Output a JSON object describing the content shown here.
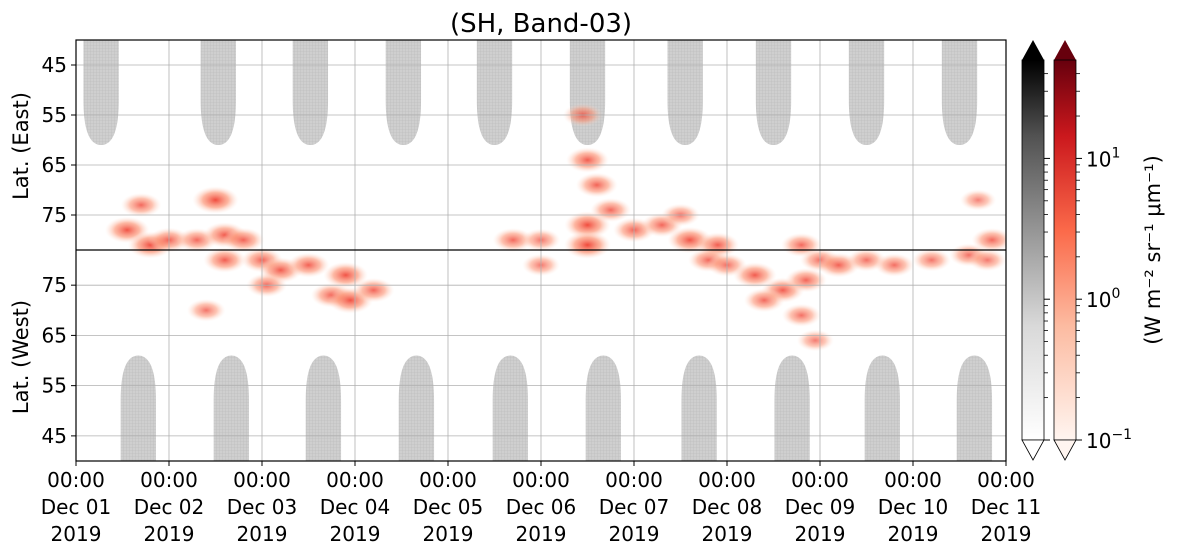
{
  "chart_data": {
    "type": "heatmap",
    "title": "(SH, Band-03)",
    "panels": [
      {
        "name": "east",
        "ylabel": "Lat. (East)",
        "y_ticks": [
          "45",
          "55",
          "65",
          "75"
        ],
        "y_range": [
          40,
          82
        ],
        "direction": "poleward-down"
      },
      {
        "name": "west",
        "ylabel": "Lat. (West)",
        "y_ticks": [
          "75",
          "65",
          "55",
          "45"
        ],
        "y_range": [
          82,
          40
        ],
        "direction": "poleward-up"
      }
    ],
    "x_ticks": [
      {
        "time": "00:00",
        "date": "Dec 01",
        "year": "2019"
      },
      {
        "time": "00:00",
        "date": "Dec 02",
        "year": "2019"
      },
      {
        "time": "00:00",
        "date": "Dec 03",
        "year": "2019"
      },
      {
        "time": "00:00",
        "date": "Dec 04",
        "year": "2019"
      },
      {
        "time": "00:00",
        "date": "Dec 05",
        "year": "2019"
      },
      {
        "time": "00:00",
        "date": "Dec 06",
        "year": "2019"
      },
      {
        "time": "00:00",
        "date": "Dec 07",
        "year": "2019"
      },
      {
        "time": "00:00",
        "date": "Dec 08",
        "year": "2019"
      },
      {
        "time": "00:00",
        "date": "Dec 09",
        "year": "2019"
      },
      {
        "time": "00:00",
        "date": "Dec 10",
        "year": "2019"
      },
      {
        "time": "00:00",
        "date": "Dec 11",
        "year": "2019"
      }
    ],
    "x_range_days": [
      0,
      10
    ],
    "grid": true,
    "colorbars": [
      {
        "name": "gray",
        "colors": [
          "#ffffff",
          "#d9d9d9",
          "#969696",
          "#525252",
          "#000000"
        ],
        "extend": "both"
      },
      {
        "name": "reds",
        "colors": [
          "#fff5f0",
          "#fcbba1",
          "#fb6a4a",
          "#cb181d",
          "#67000d"
        ],
        "extend": "both"
      }
    ],
    "colorbar_ticks": [
      {
        "base": "10",
        "exp": "1",
        "value": 10
      },
      {
        "base": "10",
        "exp": "0",
        "value": 1
      },
      {
        "base": "10",
        "exp": "−1",
        "value": 0.1
      }
    ],
    "colorbar_range": [
      0.1,
      50
    ],
    "colorbar_scale": "log",
    "colorbar_label": "(W m⁻² sr⁻¹ μm⁻¹)",
    "no_data_color": "#cccccc",
    "no_data_day_centers_east": [
      0.27,
      1.53,
      2.52,
      3.52,
      4.5,
      5.5,
      6.55,
      7.5,
      8.5,
      9.5
    ],
    "no_data_day_centers_west": [
      0.67,
      1.67,
      2.66,
      3.66,
      4.67,
      5.67,
      6.7,
      7.7,
      8.67,
      9.66
    ],
    "emission_blobs": [
      {
        "day": 0.55,
        "lat": 78,
        "panel": "east",
        "value": 2.5
      },
      {
        "day": 0.7,
        "lat": 73,
        "panel": "east",
        "value": 1.2
      },
      {
        "day": 0.8,
        "lat": 81,
        "panel": "east",
        "value": 3.0
      },
      {
        "day": 1.0,
        "lat": 80,
        "panel": "east",
        "value": 1.5
      },
      {
        "day": 1.3,
        "lat": 80,
        "panel": "east",
        "value": 1.2
      },
      {
        "day": 1.5,
        "lat": 72,
        "panel": "east",
        "value": 3.5
      },
      {
        "day": 1.6,
        "lat": 79,
        "panel": "east",
        "value": 2.0
      },
      {
        "day": 1.8,
        "lat": 80,
        "panel": "east",
        "value": 1.5
      },
      {
        "day": 1.6,
        "lat": 80,
        "panel": "west",
        "value": 1.8
      },
      {
        "day": 2.0,
        "lat": 80,
        "panel": "west",
        "value": 1.5
      },
      {
        "day": 2.2,
        "lat": 78,
        "panel": "west",
        "value": 2.0
      },
      {
        "day": 2.5,
        "lat": 79,
        "panel": "west",
        "value": 1.6
      },
      {
        "day": 2.9,
        "lat": 77,
        "panel": "west",
        "value": 2.5
      },
      {
        "day": 2.05,
        "lat": 75,
        "panel": "west",
        "value": 1.2
      },
      {
        "day": 2.75,
        "lat": 73,
        "panel": "west",
        "value": 1.5
      },
      {
        "day": 2.95,
        "lat": 72,
        "panel": "west",
        "value": 2.8
      },
      {
        "day": 3.2,
        "lat": 74,
        "panel": "west",
        "value": 1.4
      },
      {
        "day": 1.4,
        "lat": 70,
        "panel": "west",
        "value": 0.8
      },
      {
        "day": 4.7,
        "lat": 80,
        "panel": "east",
        "value": 1.2
      },
      {
        "day": 5.0,
        "lat": 80,
        "panel": "east",
        "value": 0.8
      },
      {
        "day": 5.0,
        "lat": 79,
        "panel": "west",
        "value": 0.7
      },
      {
        "day": 5.45,
        "lat": 55,
        "panel": "east",
        "value": 1.0
      },
      {
        "day": 5.5,
        "lat": 64,
        "panel": "east",
        "value": 1.8
      },
      {
        "day": 5.6,
        "lat": 69,
        "panel": "east",
        "value": 1.5
      },
      {
        "day": 5.5,
        "lat": 77,
        "panel": "east",
        "value": 3.5
      },
      {
        "day": 5.5,
        "lat": 81,
        "panel": "east",
        "value": 4.0
      },
      {
        "day": 5.75,
        "lat": 74,
        "panel": "east",
        "value": 1.2
      },
      {
        "day": 6.0,
        "lat": 78,
        "panel": "east",
        "value": 1.5
      },
      {
        "day": 6.3,
        "lat": 77,
        "panel": "east",
        "value": 1.3
      },
      {
        "day": 6.6,
        "lat": 80,
        "panel": "east",
        "value": 2.5
      },
      {
        "day": 6.9,
        "lat": 81,
        "panel": "east",
        "value": 1.8
      },
      {
        "day": 6.5,
        "lat": 75,
        "panel": "east",
        "value": 0.8
      },
      {
        "day": 6.8,
        "lat": 80,
        "panel": "west",
        "value": 1.2
      },
      {
        "day": 7.0,
        "lat": 79,
        "panel": "west",
        "value": 1.0
      },
      {
        "day": 7.3,
        "lat": 77,
        "panel": "west",
        "value": 2.0
      },
      {
        "day": 7.6,
        "lat": 74,
        "panel": "west",
        "value": 1.8
      },
      {
        "day": 7.4,
        "lat": 72,
        "panel": "west",
        "value": 1.2
      },
      {
        "day": 7.85,
        "lat": 76,
        "panel": "west",
        "value": 1.4
      },
      {
        "day": 7.8,
        "lat": 69,
        "panel": "west",
        "value": 0.9
      },
      {
        "day": 7.95,
        "lat": 64,
        "panel": "west",
        "value": 0.6
      },
      {
        "day": 7.8,
        "lat": 81,
        "panel": "east",
        "value": 1.2
      },
      {
        "day": 8.0,
        "lat": 80,
        "panel": "west",
        "value": 1.0
      },
      {
        "day": 8.2,
        "lat": 79,
        "panel": "west",
        "value": 1.6
      },
      {
        "day": 8.5,
        "lat": 80,
        "panel": "west",
        "value": 0.9
      },
      {
        "day": 8.8,
        "lat": 79,
        "panel": "west",
        "value": 1.0
      },
      {
        "day": 9.2,
        "lat": 80,
        "panel": "west",
        "value": 0.8
      },
      {
        "day": 9.6,
        "lat": 81,
        "panel": "west",
        "value": 0.9
      },
      {
        "day": 9.85,
        "lat": 80,
        "panel": "east",
        "value": 1.2
      },
      {
        "day": 9.7,
        "lat": 72,
        "panel": "east",
        "value": 0.5
      },
      {
        "day": 9.8,
        "lat": 80,
        "panel": "west",
        "value": 0.7
      }
    ]
  }
}
